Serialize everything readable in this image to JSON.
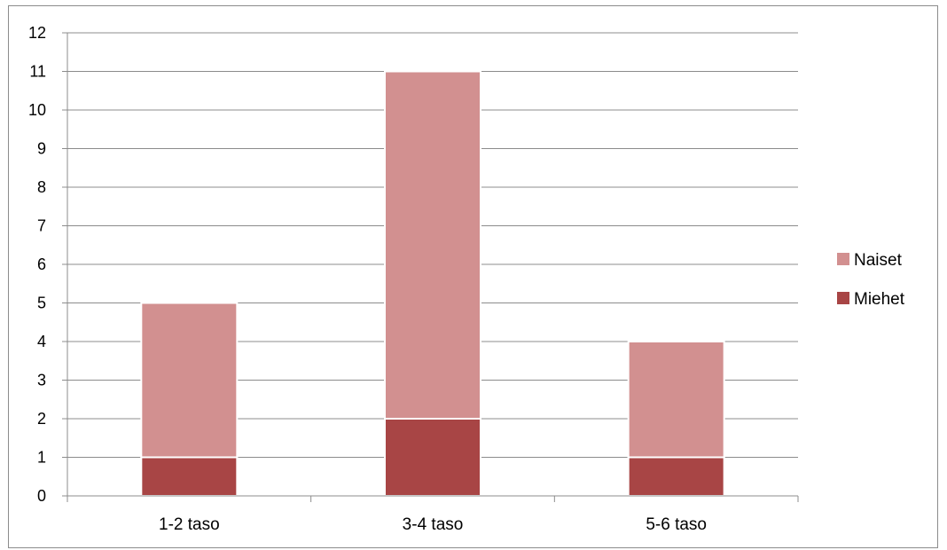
{
  "chart_data": {
    "type": "bar",
    "stacked": true,
    "categories": [
      "1-2 taso",
      "3-4 taso",
      "5-6 taso"
    ],
    "series": [
      {
        "name": "Miehet",
        "values": [
          1,
          2,
          1
        ],
        "color": "#a84545"
      },
      {
        "name": "Naiset",
        "values": [
          4,
          9,
          3
        ],
        "color": "#d29090"
      }
    ],
    "yticks": [
      "0",
      "1",
      "2",
      "3",
      "4",
      "5",
      "6",
      "7",
      "8",
      "9",
      "10",
      "11",
      "12"
    ],
    "ylim": [
      0,
      12
    ],
    "grid": true,
    "legend": {
      "position": "right",
      "order": [
        "Naiset",
        "Miehet"
      ]
    }
  }
}
